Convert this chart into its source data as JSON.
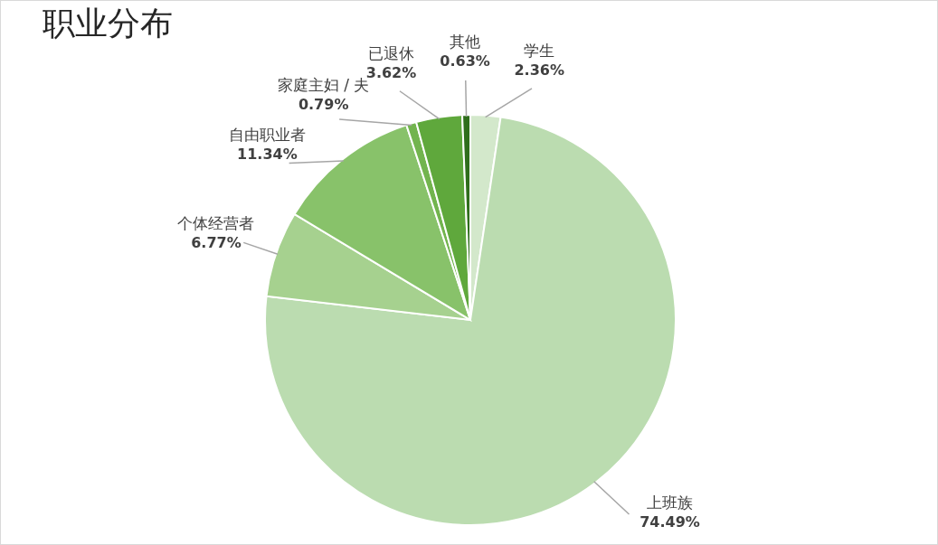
{
  "chart_data": {
    "type": "pie",
    "title": "职业分布",
    "categories": [
      "学生",
      "上班族",
      "个体经营者",
      "自由职业者",
      "家庭主妇 / 夫",
      "已退休",
      "其他"
    ],
    "values": [
      2.36,
      74.49,
      6.77,
      11.34,
      0.79,
      3.62,
      0.63
    ],
    "value_labels": [
      "2.36%",
      "74.49%",
      "6.77%",
      "11.34%",
      "0.79%",
      "3.62%",
      "0.63%"
    ],
    "colors": [
      "#d3e8cb",
      "#bbdcb0",
      "#a6d18f",
      "#88c26a",
      "#72b44e",
      "#5fa83c",
      "#2f6e1c"
    ]
  }
}
